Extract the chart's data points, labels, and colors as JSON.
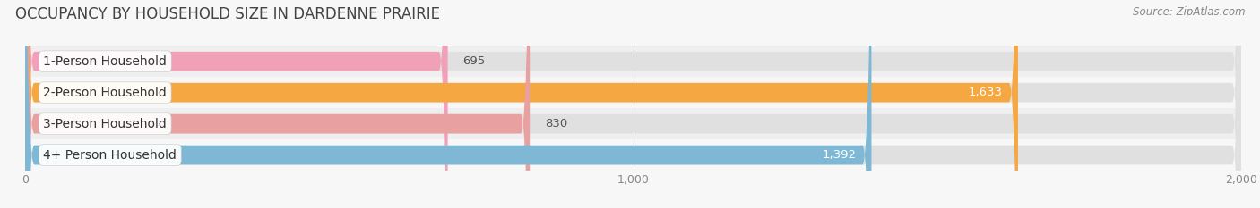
{
  "title": "OCCUPANCY BY HOUSEHOLD SIZE IN DARDENNE PRAIRIE",
  "source": "Source: ZipAtlas.com",
  "categories": [
    "1-Person Household",
    "2-Person Household",
    "3-Person Household",
    "4+ Person Household"
  ],
  "values": [
    695,
    1633,
    830,
    1392
  ],
  "bar_colors": [
    "#f2a0b8",
    "#f5a742",
    "#e8a0a0",
    "#7eb8d4"
  ],
  "bar_bg_color": "#e0e0e0",
  "value_labels": [
    "695",
    "1,633",
    "830",
    "1,392"
  ],
  "xlim": [
    0,
    2000
  ],
  "xticks": [
    0,
    1000,
    2000
  ],
  "xtick_labels": [
    "0",
    "1,000",
    "2,000"
  ],
  "title_fontsize": 12,
  "source_fontsize": 8.5,
  "label_fontsize": 10,
  "value_fontsize": 9.5,
  "background_color": "#f7f7f7",
  "bar_height": 0.62,
  "label_box_color": "#ffffff",
  "row_bg_color": "#efefef",
  "row_bg_alt_color": "#f7f7f7",
  "value_label_dark": "#555555",
  "value_label_light": "#ffffff",
  "large_value_threshold": 1300
}
